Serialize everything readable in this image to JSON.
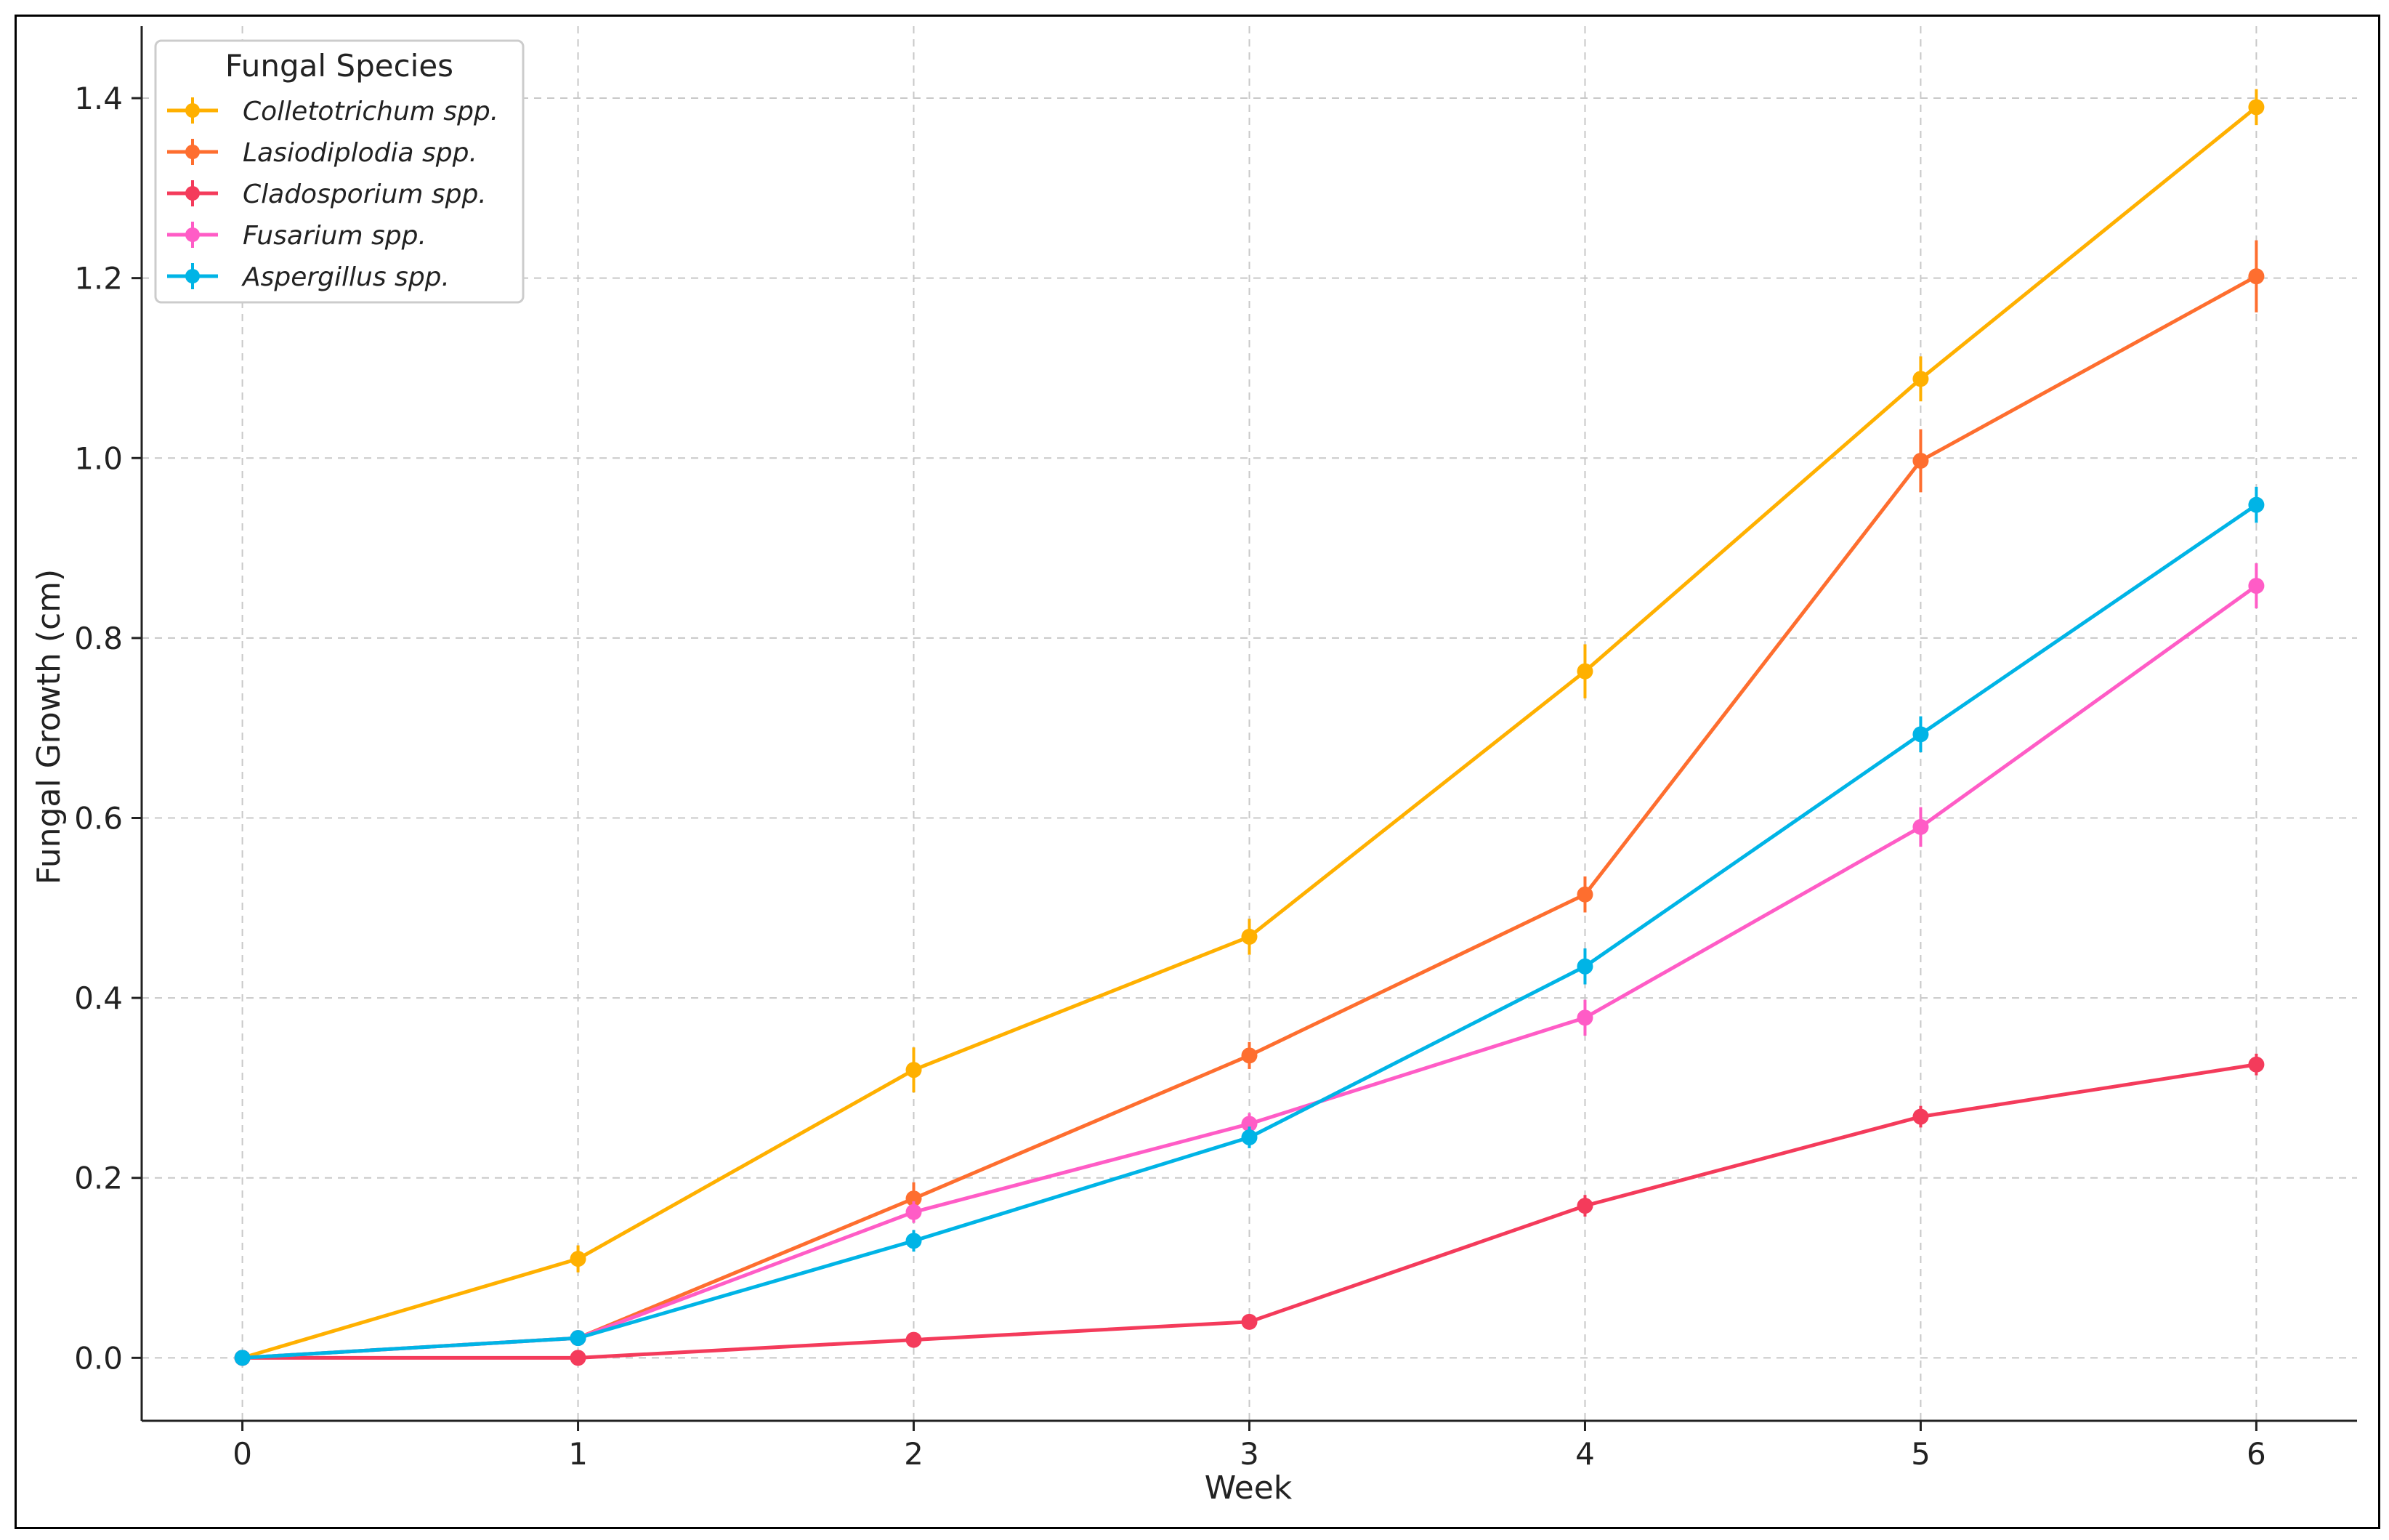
{
  "chart_data": {
    "type": "line",
    "title": "",
    "xlabel": "Week",
    "ylabel": "Fungal Growth (cm)",
    "x": [
      0,
      1,
      2,
      3,
      4,
      5,
      6
    ],
    "xlim": [
      -0.3,
      6.3
    ],
    "ylim": [
      -0.07,
      1.48
    ],
    "xticks": [
      "0",
      "1",
      "2",
      "3",
      "4",
      "5",
      "6"
    ],
    "yticks": [
      "0.0",
      "0.2",
      "0.4",
      "0.6",
      "0.8",
      "1.0",
      "1.2",
      "1.4"
    ],
    "grid": true,
    "legend": {
      "title": "Fungal Species",
      "position": "top-left"
    },
    "series": [
      {
        "name": "Colletotrichum spp.",
        "color": "#FFB000",
        "values": [
          0.0,
          0.11,
          0.32,
          0.468,
          0.763,
          1.088,
          1.39
        ],
        "errors": [
          0.0,
          0.015,
          0.025,
          0.02,
          0.03,
          0.025,
          0.02
        ]
      },
      {
        "name": "Lasiodiplodia spp.",
        "color": "#FE6E2F",
        "values": [
          0.0,
          0.022,
          0.177,
          0.336,
          0.515,
          0.997,
          1.202
        ],
        "errors": [
          0.0,
          0.005,
          0.018,
          0.015,
          0.02,
          0.035,
          0.04
        ]
      },
      {
        "name": "Cladosporium spp.",
        "color": "#F43B5B",
        "values": [
          0.0,
          0.0,
          0.02,
          0.04,
          0.169,
          0.268,
          0.326
        ],
        "errors": [
          0.0,
          0.003,
          0.005,
          0.006,
          0.012,
          0.012,
          0.012
        ]
      },
      {
        "name": "Fusarium spp.",
        "color": "#FF5CC6",
        "values": [
          0.0,
          0.022,
          0.162,
          0.26,
          0.378,
          0.59,
          0.858
        ],
        "errors": [
          0.0,
          0.005,
          0.012,
          0.012,
          0.02,
          0.022,
          0.025
        ]
      },
      {
        "name": "Aspergillus spp.",
        "color": "#00B4E6",
        "values": [
          0.0,
          0.022,
          0.13,
          0.245,
          0.435,
          0.693,
          0.948
        ],
        "errors": [
          0.0,
          0.005,
          0.012,
          0.012,
          0.02,
          0.02,
          0.02
        ]
      }
    ]
  }
}
